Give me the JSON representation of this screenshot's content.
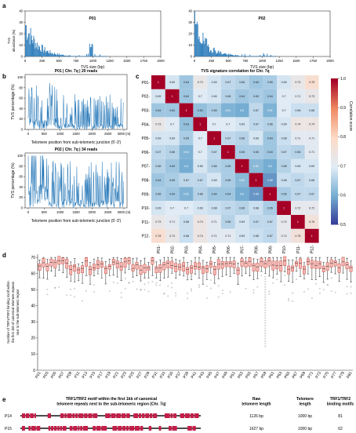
{
  "panels": {
    "a": "a",
    "b": "b",
    "c": "c",
    "d": "d",
    "e": "e"
  },
  "panel_a": {
    "charts": [
      {
        "title": "P01",
        "ylabel": "TVS\nabundance (%)",
        "xlabel": "TVS size (bp)",
        "xticks": [
          "0",
          "250",
          "500",
          "750",
          "1000",
          "1250",
          "1500",
          "1750",
          "2000"
        ],
        "yticks": [
          "0",
          "10",
          "20",
          "30",
          "40"
        ],
        "ylim": [
          0,
          40
        ],
        "xlim": [
          0,
          2000
        ]
      },
      {
        "title": "P02",
        "ylabel": "",
        "xlabel": "TVS size (bp)",
        "xticks": [
          "0",
          "250",
          "500",
          "750",
          "1000",
          "1250",
          "1500",
          "1750",
          "2000"
        ],
        "yticks": [
          "0",
          "10",
          "20",
          "30",
          "40"
        ],
        "ylim": [
          0,
          40
        ],
        "xlim": [
          0,
          2000
        ]
      }
    ]
  },
  "panel_b": {
    "charts": [
      {
        "title": "P01 | Chr. 7q | 20 reads",
        "ylabel": "TVS percentage (%)",
        "xlabel": "Telomere position from sub-telomeric junction (5'-3')",
        "xticks": [
          "0",
          "500",
          "1000",
          "1500",
          "2000",
          "2500",
          "3000 (nt)"
        ],
        "yticks": [
          "0",
          "20",
          "40",
          "60",
          "80",
          "100"
        ]
      },
      {
        "title": "P02 | Chr. 7q | 34 reads",
        "ylabel": "TVS percentage (%)",
        "xlabel": "Telomere position from sub-telomeric junction (5'-3')",
        "xticks": [
          "0",
          "500",
          "1000",
          "1500",
          "2000",
          "2500",
          "3000 (nt)"
        ],
        "yticks": [
          "0",
          "20",
          "40",
          "60",
          "80",
          "100"
        ]
      }
    ]
  },
  "panel_c": {
    "title": "TVS signature correlation for Chr. 7q",
    "colorbar_label": "Correlation score",
    "colorbar_ticks": [
      "1.0",
      "0.9",
      "0.8",
      "0.7",
      "0.6",
      "0.5"
    ],
    "labels": [
      "P01",
      "P02",
      "P03",
      "P04",
      "P05",
      "P06",
      "P07",
      "P08",
      "P09",
      "P10",
      "P11",
      "P12"
    ],
    "matrix": [
      [
        "1",
        "0.69",
        "0.64",
        "0.73",
        "0.69",
        "0.67",
        "0.66",
        "0.64",
        "0.65",
        "0.69",
        "0.73",
        "0.78"
      ],
      [
        "0.69",
        "1",
        "0.64",
        "0.7",
        "0.69",
        "0.66",
        "0.64",
        "0.65",
        "0.64",
        "0.7",
        "0.71",
        "0.73"
      ],
      [
        "0.64",
        "0.64",
        "1",
        "0.63",
        "0.65",
        "0.61",
        "0.6",
        "0.67",
        "0.61",
        "0.7",
        "0.68",
        "0.68"
      ],
      [
        "0.73",
        "0.7",
        "0.63",
        "1",
        "0.7",
        "0.7",
        "0.69",
        "0.67",
        "0.66",
        "0.69",
        "0.74",
        "0.74"
      ],
      [
        "0.69",
        "0.69",
        "0.65",
        "0.7",
        "1",
        "0.67",
        "0.66",
        "0.69",
        "0.64",
        "0.68",
        "0.71",
        "0.71"
      ],
      [
        "0.67",
        "0.66",
        "0.61",
        "0.7",
        "0.67",
        "1",
        "0.65",
        "0.65",
        "0.64",
        "0.67",
        "0.66",
        "0.71"
      ],
      [
        "0.66",
        "0.64",
        "0.6",
        "0.69",
        "0.66",
        "0.65",
        "1",
        "0.62",
        "0.6",
        "0.66",
        "0.69",
        "0.69"
      ],
      [
        "0.64",
        "0.65",
        "0.67",
        "0.67",
        "0.69",
        "0.65",
        "0.62",
        "1",
        "0.58",
        "0.68",
        "0.67",
        "0.68"
      ],
      [
        "0.65",
        "0.64",
        "0.61",
        "0.66",
        "0.64",
        "0.64",
        "0.6",
        "0.58",
        "1",
        "0.65",
        "0.67",
        "0.67"
      ],
      [
        "0.69",
        "0.7",
        "0.7",
        "0.69",
        "0.68",
        "0.67",
        "0.66",
        "0.68",
        "0.65",
        "1",
        "0.72",
        "0.72"
      ],
      [
        "0.73",
        "0.71",
        "0.68",
        "0.74",
        "0.71",
        "0.66",
        "0.69",
        "0.67",
        "0.67",
        "0.72",
        "1",
        "0.76"
      ],
      [
        "0.78",
        "0.73",
        "0.68",
        "0.74",
        "0.71",
        "0.71",
        "0.69",
        "0.68",
        "0.67",
        "0.72",
        "0.76",
        "1"
      ]
    ]
  },
  "panel_d": {
    "ylabel": "Number of TRF1/TRF2 binding motif within\nthe first 1kb of canonical telomere repeats\nnext to the sub-telomeric region",
    "yticks": [
      "0",
      "10",
      "20",
      "30",
      "40",
      "50",
      "60",
      "70"
    ],
    "categories": [
      "P01",
      "P03",
      "P05",
      "P07",
      "P09",
      "P11",
      "P13",
      "P15",
      "P17",
      "P19",
      "P21",
      "P23",
      "P25",
      "P27",
      "P29",
      "P31",
      "P33",
      "P35",
      "P37",
      "P39",
      "P41",
      "P43",
      "P45",
      "P47",
      "P49",
      "P51",
      "P53",
      "P55",
      "P57",
      "P59",
      "P61",
      "P63",
      "P65",
      "P67",
      "P69",
      "P71",
      "P73",
      "P75",
      "P77",
      "P79",
      "P81"
    ]
  },
  "panel_e": {
    "title": "TRF1/TRF2 motif within the first 1kb of canonical\ntelomere repeats next to the sub-telomeric region (Chr. 7q)",
    "col_headers": [
      "Raw\ntelomere length",
      "Telomere\nlength",
      "TRF1/TRF2\nbinding motifs"
    ],
    "rows": [
      {
        "label": "P14",
        "raw": "1126 bp",
        "len": "1000 bp",
        "motifs": "81"
      },
      {
        "label": "P15",
        "raw": "1627 bp",
        "len": "1000 bp",
        "motifs": "62"
      }
    ]
  },
  "colors": {
    "bar": "#2b7bba",
    "box_fill": "#f4b7b4",
    "box_edge": "#c0392b",
    "track": "#c21f4a"
  }
}
